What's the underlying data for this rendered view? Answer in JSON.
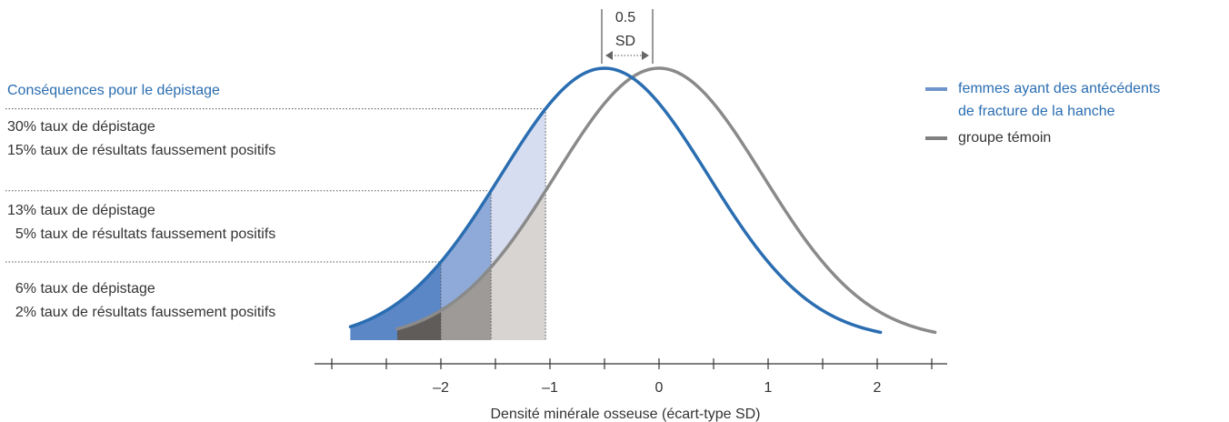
{
  "chart_data": {
    "type": "area",
    "xlabel": "Densité minérale osseuse (écart-type SD)",
    "xlim": [
      -2.9,
      2.5
    ],
    "x_ticks": [
      -2.5,
      -2,
      -1.5,
      -1,
      -0.5,
      0,
      0.5,
      1,
      1.5,
      2,
      2.5
    ],
    "x_tick_labels": [
      {
        "value": -2,
        "label": "–2"
      },
      {
        "value": -1,
        "label": "–1"
      },
      {
        "value": 0,
        "label": "0"
      },
      {
        "value": 1,
        "label": "1"
      },
      {
        "value": 2,
        "label": "2"
      }
    ],
    "series": [
      {
        "name": "femmes ayant des antécédents de fracture de la hanche",
        "mean": -0.5,
        "sd": 0.95,
        "x_range": [
          -2.83,
          2.03
        ],
        "color": "#2a6db1"
      },
      {
        "name": "groupe témoin",
        "mean": 0.0,
        "sd": 0.95,
        "x_range": [
          -2.4,
          2.53
        ],
        "color": "#8a8a8a"
      }
    ],
    "thresholds": [
      -2.0,
      -1.54,
      -1.04
    ],
    "shade_colors": {
      "case": [
        "#5b87c7",
        "#8faad8",
        "#d6ddf0"
      ],
      "control": [
        "#5f5c5a",
        "#9d9a97",
        "#d7d4d1"
      ]
    },
    "annotation": {
      "line1": "0.5",
      "line2": "SD",
      "from": -0.5,
      "to": 0.0
    },
    "legend_placement": "right"
  },
  "left_panel": {
    "title": "Conséquences pour le dépistage",
    "rows": [
      {
        "line1": "30% taux de dépistage",
        "line2": "15% taux de résultats faussement positifs"
      },
      {
        "line1": "13% taux de dépistage",
        "line2": "  5% taux de résultats faussement positifs"
      },
      {
        "line1": "  6% taux de dépistage",
        "line2": "  2% taux de résultats faussement positifs"
      }
    ]
  },
  "legend": {
    "case_line1": "femmes ayant des antécédents",
    "case_line2": "de fracture de la hanche",
    "control": "groupe témoin",
    "case_color": "#6f94cc",
    "control_color": "#808080"
  }
}
